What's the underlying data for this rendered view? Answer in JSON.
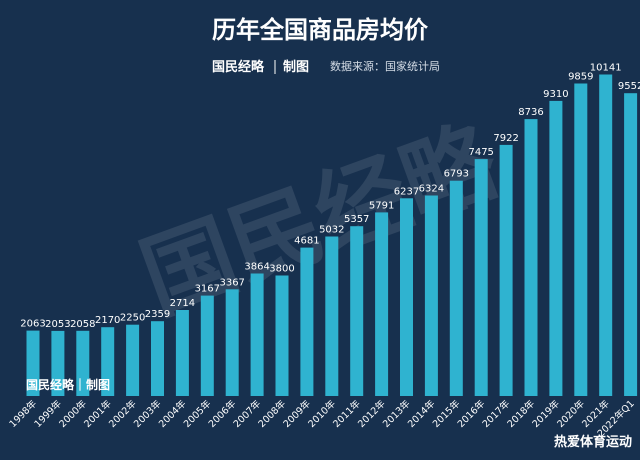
{
  "header": {
    "title": "历年全国商品房均价",
    "brand": "国民经略",
    "brand_suffix": "制图",
    "source": "数据来源：国家统计局"
  },
  "watermark": {
    "main": "国民经略",
    "bottom": "国民经略｜制图",
    "corner": "热爱体育运动"
  },
  "colors": {
    "background": "#17304e",
    "bar": "#2fb3d0",
    "text": "#ffffff"
  },
  "chart_data": {
    "type": "bar",
    "title": "历年全国商品房均价",
    "categories": [
      "1998年",
      "1999年",
      "2000年",
      "2001年",
      "2002年",
      "2003年",
      "2004年",
      "2005年",
      "2006年",
      "2007年",
      "2008年",
      "2009年",
      "2010年",
      "2011年",
      "2012年",
      "2013年",
      "2014年",
      "2015年",
      "2016年",
      "2017年",
      "2018年",
      "2019年",
      "2020年",
      "2021年",
      "2022年Q1"
    ],
    "values": [
      2063,
      2053,
      2058,
      2170,
      2250,
      2359,
      2714,
      3167,
      3367,
      3864,
      3800,
      4681,
      5032,
      5357,
      5791,
      6237,
      6324,
      6793,
      7475,
      7922,
      8736,
      9310,
      9859,
      10141,
      9552
    ],
    "ylim": [
      0,
      10600
    ],
    "grid": false,
    "legend": "none",
    "data_labels": true
  }
}
